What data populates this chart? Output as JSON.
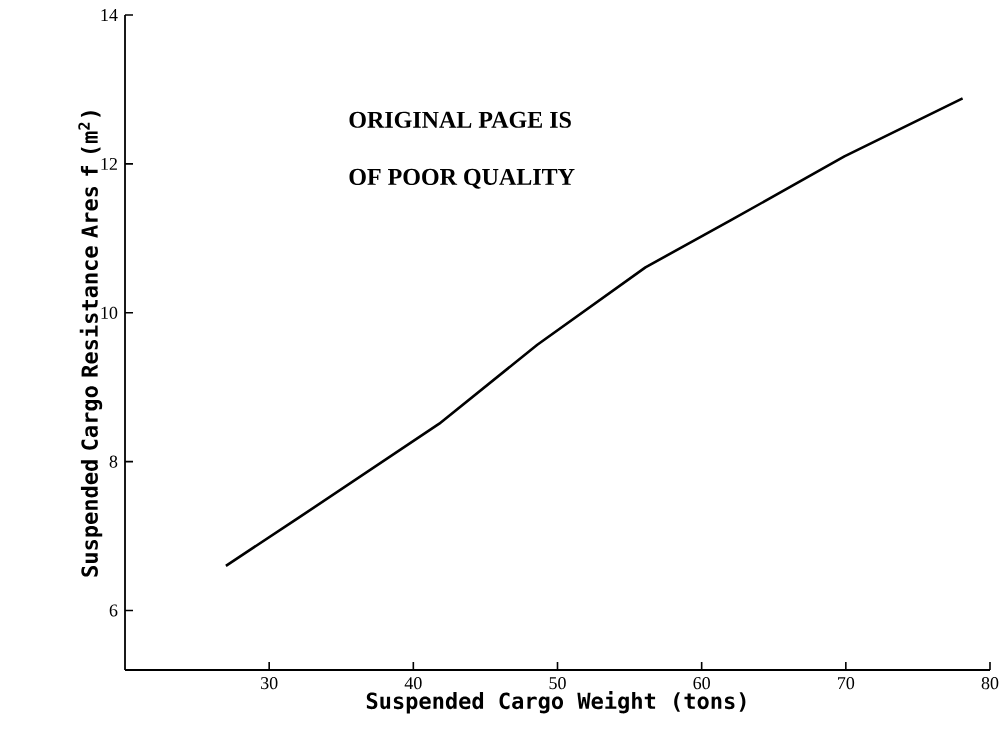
{
  "chart_data": {
    "type": "line",
    "xlabel": "Suspended Cargo Weight (tons)",
    "ylabel": "Suspended Cargo Resistance Ares f (m$^{2}$)",
    "annotations": [
      "ORIGINAL PAGE IS",
      "OF POOR QUALITY"
    ],
    "x": [
      27,
      32,
      41.8,
      48.6,
      56.1,
      62,
      69.9,
      78.1
    ],
    "series": [
      {
        "color": "#000000",
        "values": [
          6.6,
          7.24,
          8.51,
          9.57,
          10.61,
          11.24,
          12.1,
          12.88
        ]
      }
    ],
    "xlim": [
      20,
      80
    ],
    "ylim": [
      5.2,
      14
    ],
    "xticks": [
      30,
      40,
      50,
      60,
      70,
      80
    ],
    "yticks": [
      6,
      8,
      10,
      12,
      14
    ]
  }
}
